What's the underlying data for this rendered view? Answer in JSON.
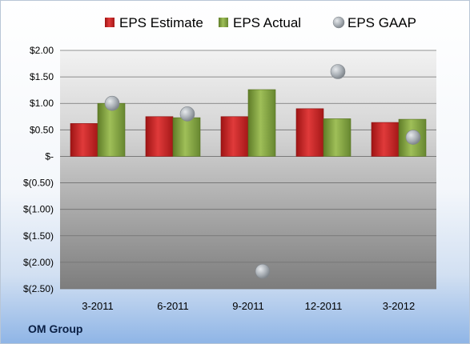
{
  "chart_data": {
    "type": "bar",
    "categories": [
      "3-2011",
      "6-2011",
      "9-2011",
      "12-2011",
      "3-2012"
    ],
    "series": [
      {
        "name": "EPS Estimate",
        "type": "bar",
        "color": "#d42a2a",
        "values": [
          0.62,
          0.75,
          0.75,
          0.9,
          0.64
        ]
      },
      {
        "name": "EPS Actual",
        "type": "bar",
        "color": "#8fb04a",
        "values": [
          1.0,
          0.73,
          1.26,
          0.71,
          0.7
        ]
      },
      {
        "name": "EPS GAAP",
        "type": "scatter",
        "color": "#a8aeb4",
        "values": [
          1.0,
          0.8,
          -2.17,
          1.6,
          0.36
        ]
      }
    ],
    "ylim": [
      -2.5,
      2.0
    ],
    "yticks": [
      2.0,
      1.5,
      1.0,
      0.5,
      0,
      -0.5,
      -1.0,
      -1.5,
      -2.0,
      -2.5
    ],
    "ytick_labels": [
      "$2.00",
      "$1.50",
      "$1.00",
      "$0.50",
      "$-",
      "$(0.50)",
      "$(1.00)",
      "$(1.50)",
      "$(2.00)",
      "$(2.50)"
    ],
    "legend_position": "top",
    "grid": true
  },
  "footer": {
    "company": "OM Group"
  }
}
